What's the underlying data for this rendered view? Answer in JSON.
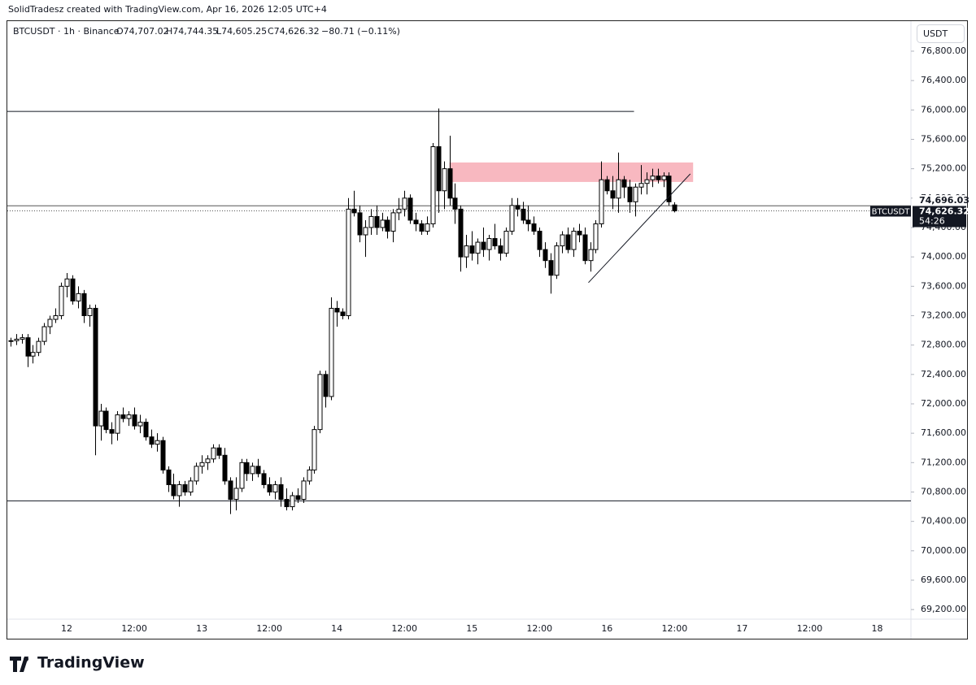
{
  "header": {
    "credit": "SolidTradesz created with TradingView.com, Apr 16, 2026 12:05 UTC+4"
  },
  "footer": {
    "brand": "TradingView"
  },
  "chart_data": {
    "type": "candlestick",
    "legend": {
      "symbol": "BTCUSDT · 1h · Binance",
      "open": "O74,707.02",
      "high": "H74,744.35",
      "low": "L74,605.25",
      "close": "C74,626.32",
      "change": "−80.71 (−0.11%)"
    },
    "currency": "USDT",
    "up_color": "#ffffff",
    "down_color": "#000000",
    "outline": "#000000",
    "categories": [
      null,
      null,
      null,
      null,
      null,
      null,
      null,
      null,
      null,
      null,
      "12",
      null,
      null,
      null,
      null,
      null,
      null,
      null,
      null,
      null,
      null,
      null,
      "12:00",
      null,
      null,
      null,
      null,
      null,
      null,
      null,
      null,
      null,
      null,
      null,
      "13",
      null,
      null,
      null,
      null,
      null,
      null,
      null,
      null,
      null,
      null,
      null,
      "12:00",
      null,
      null,
      null,
      null,
      null,
      null,
      null,
      null,
      null,
      null,
      null,
      "14",
      null,
      null,
      null,
      null,
      null,
      null,
      null,
      null,
      null,
      null,
      null,
      "12:00",
      null,
      null,
      null,
      null,
      null,
      null,
      null,
      null,
      null,
      null,
      null,
      "15",
      null,
      null,
      null,
      null,
      null,
      null,
      null,
      null,
      null,
      null,
      null,
      "12:00",
      null,
      null,
      null,
      null,
      null,
      null,
      null,
      null,
      null,
      null,
      null,
      "16",
      null,
      null,
      null,
      null,
      null,
      null,
      null,
      null,
      null,
      null,
      null,
      "12:00",
      null,
      null,
      null,
      null,
      null,
      null,
      null,
      null,
      null,
      null,
      null,
      "17",
      null,
      null,
      null,
      null,
      null,
      null,
      null,
      null,
      null,
      null,
      null,
      "12:00",
      null,
      null,
      null,
      null,
      null,
      null,
      null,
      null,
      null,
      null,
      null,
      "18"
    ],
    "ohlc": [
      [
        72850,
        72900,
        72780,
        72860
      ],
      [
        72860,
        72950,
        72800,
        72880
      ],
      [
        72880,
        72950,
        72820,
        72900
      ],
      [
        72900,
        72950,
        72500,
        72650
      ],
      [
        72650,
        72800,
        72550,
        72700
      ],
      [
        72700,
        72900,
        72650,
        72850
      ],
      [
        72850,
        73100,
        72800,
        73050
      ],
      [
        73050,
        73200,
        72950,
        73150
      ],
      [
        73150,
        73300,
        73100,
        73200
      ],
      [
        73200,
        73650,
        73150,
        73600
      ],
      [
        73600,
        73780,
        73450,
        73700
      ],
      [
        73700,
        73750,
        73350,
        73400
      ],
      [
        73400,
        73600,
        73300,
        73500
      ],
      [
        73500,
        73550,
        73100,
        73200
      ],
      [
        73200,
        73350,
        73050,
        73300
      ],
      [
        73300,
        73350,
        71300,
        71700
      ],
      [
        71700,
        72000,
        71500,
        71900
      ],
      [
        71900,
        71950,
        71600,
        71650
      ],
      [
        71650,
        71750,
        71450,
        71600
      ],
      [
        71600,
        71900,
        71500,
        71850
      ],
      [
        71850,
        71950,
        71750,
        71800
      ],
      [
        71800,
        71900,
        71700,
        71850
      ],
      [
        71850,
        71950,
        71650,
        71700
      ],
      [
        71700,
        71850,
        71600,
        71750
      ],
      [
        71750,
        71800,
        71500,
        71550
      ],
      [
        71550,
        71650,
        71400,
        71450
      ],
      [
        71450,
        71600,
        71350,
        71500
      ],
      [
        71500,
        71550,
        71050,
        71100
      ],
      [
        71100,
        71150,
        70800,
        70900
      ],
      [
        70900,
        71050,
        70700,
        70750
      ],
      [
        70750,
        70950,
        70600,
        70900
      ],
      [
        70900,
        70950,
        70750,
        70800
      ],
      [
        70800,
        71000,
        70750,
        70950
      ],
      [
        70950,
        71200,
        70900,
        71150
      ],
      [
        71150,
        71300,
        71050,
        71200
      ],
      [
        71200,
        71300,
        71100,
        71250
      ],
      [
        71250,
        71450,
        71200,
        71400
      ],
      [
        71400,
        71450,
        71250,
        71300
      ],
      [
        71300,
        71400,
        70900,
        70950
      ],
      [
        70950,
        71000,
        70500,
        70700
      ],
      [
        70700,
        71000,
        70550,
        70850
      ],
      [
        70850,
        71250,
        70800,
        71200
      ],
      [
        71200,
        71250,
        70950,
        71050
      ],
      [
        71050,
        71200,
        70950,
        71150
      ],
      [
        71150,
        71250,
        71000,
        71050
      ],
      [
        71050,
        71100,
        70850,
        70900
      ],
      [
        70900,
        71000,
        70750,
        70800
      ],
      [
        70800,
        70950,
        70700,
        70900
      ],
      [
        70900,
        71000,
        70600,
        70700
      ],
      [
        70700,
        70850,
        70550,
        70600
      ],
      [
        70600,
        70800,
        70550,
        70750
      ],
      [
        70750,
        70850,
        70650,
        70700
      ],
      [
        70700,
        71000,
        70650,
        70950
      ],
      [
        70950,
        71150,
        70900,
        71100
      ],
      [
        71100,
        71700,
        71050,
        71650
      ],
      [
        71650,
        72450,
        71600,
        72400
      ],
      [
        72400,
        72450,
        71950,
        72100
      ],
      [
        72100,
        73450,
        72050,
        73300
      ],
      [
        73300,
        73400,
        73050,
        73250
      ],
      [
        73250,
        73300,
        73150,
        73200
      ],
      [
        73200,
        74800,
        73150,
        74650
      ],
      [
        74650,
        74900,
        74550,
        74600
      ],
      [
        74600,
        74700,
        74200,
        74300
      ],
      [
        74300,
        74500,
        74000,
        74400
      ],
      [
        74400,
        74650,
        74300,
        74550
      ],
      [
        74550,
        74700,
        74300,
        74400
      ],
      [
        74400,
        74600,
        74350,
        74500
      ],
      [
        74500,
        74550,
        74250,
        74350
      ],
      [
        74350,
        74650,
        74200,
        74600
      ],
      [
        74600,
        74800,
        74500,
        74650
      ],
      [
        74650,
        74900,
        74550,
        74800
      ],
      [
        74800,
        74850,
        74450,
        74500
      ],
      [
        74500,
        74600,
        74350,
        74450
      ],
      [
        74450,
        74500,
        74300,
        74350
      ],
      [
        74350,
        74550,
        74300,
        74450
      ],
      [
        74450,
        75550,
        74400,
        75500
      ],
      [
        75500,
        76020,
        74600,
        74900
      ],
      [
        74900,
        75300,
        74650,
        75200
      ],
      [
        75200,
        75650,
        74700,
        74800
      ],
      [
        74800,
        75000,
        74450,
        74650
      ],
      [
        74650,
        74700,
        73800,
        74000
      ],
      [
        74000,
        74300,
        73850,
        74150
      ],
      [
        74150,
        74350,
        73950,
        74050
      ],
      [
        74050,
        74250,
        73900,
        74200
      ],
      [
        74200,
        74400,
        74000,
        74100
      ],
      [
        74100,
        74300,
        73950,
        74250
      ],
      [
        74250,
        74450,
        74100,
        74150
      ],
      [
        74150,
        74250,
        73950,
        74050
      ],
      [
        74050,
        74400,
        74000,
        74350
      ],
      [
        74350,
        74800,
        74300,
        74700
      ],
      [
        74700,
        74800,
        74550,
        74650
      ],
      [
        74650,
        74750,
        74450,
        74500
      ],
      [
        74500,
        74700,
        74350,
        74450
      ],
      [
        74450,
        74550,
        74300,
        74350
      ],
      [
        74350,
        74400,
        74000,
        74100
      ],
      [
        74100,
        74200,
        73850,
        73950
      ],
      [
        73950,
        74050,
        73500,
        73750
      ],
      [
        73750,
        74200,
        73700,
        74150
      ],
      [
        74150,
        74350,
        74050,
        74300
      ],
      [
        74300,
        74400,
        74050,
        74100
      ],
      [
        74100,
        74400,
        74000,
        74350
      ],
      [
        74350,
        74450,
        74200,
        74300
      ],
      [
        74300,
        74400,
        73900,
        73950
      ],
      [
        73950,
        74200,
        73800,
        74100
      ],
      [
        74100,
        74500,
        74050,
        74450
      ],
      [
        74450,
        75300,
        74400,
        75050
      ],
      [
        75050,
        75100,
        74850,
        74900
      ],
      [
        74900,
        75100,
        74650,
        74800
      ],
      [
        74800,
        75420,
        74600,
        75050
      ],
      [
        75050,
        75100,
        74800,
        74950
      ],
      [
        74950,
        75050,
        74600,
        74750
      ],
      [
        74750,
        75000,
        74550,
        74950
      ],
      [
        74950,
        75250,
        74850,
        75000
      ],
      [
        75000,
        75150,
        74850,
        75050
      ],
      [
        75050,
        75200,
        74950,
        75100
      ],
      [
        75100,
        75200,
        75000,
        75050
      ],
      [
        75050,
        75150,
        74950,
        75100
      ],
      [
        75100,
        75150,
        74700,
        74750
      ],
      [
        74707.02,
        74744.35,
        74605.25,
        74626.32
      ],
      null,
      null,
      null,
      null,
      null,
      null,
      null,
      null,
      null,
      null,
      null,
      null,
      null,
      null,
      null,
      null,
      null,
      null,
      null,
      null,
      null,
      null,
      null,
      null,
      null,
      null,
      null,
      null,
      null,
      null,
      null,
      null,
      null,
      null,
      null,
      null
    ],
    "ylim": [
      69069,
      77220
    ],
    "yticks": [
      {
        "value": 69200,
        "label": "69,200.00"
      },
      {
        "value": 69600,
        "label": "69,600.00"
      },
      {
        "value": 70000,
        "label": "70,000.00"
      },
      {
        "value": 70400,
        "label": "70,400.00"
      },
      {
        "value": 70800,
        "label": "70,800.00"
      },
      {
        "value": 71200,
        "label": "71,200.00"
      },
      {
        "value": 71600,
        "label": "71,600.00"
      },
      {
        "value": 72000,
        "label": "72,000.00"
      },
      {
        "value": 72400,
        "label": "72,400.00"
      },
      {
        "value": 72800,
        "label": "72,800.00"
      },
      {
        "value": 73200,
        "label": "73,200.00"
      },
      {
        "value": 73600,
        "label": "73,600.00"
      },
      {
        "value": 74000,
        "label": "74,000.00"
      },
      {
        "value": 74400,
        "label": "74,400.00"
      },
      {
        "value": 74800,
        "label": "74,800.00"
      },
      {
        "value": 75200,
        "label": "75,200.00"
      },
      {
        "value": 75600,
        "label": "75,600.00"
      },
      {
        "value": 76000,
        "label": "76,000.00"
      },
      {
        "value": 76400,
        "label": "76,400.00"
      },
      {
        "value": 76800,
        "label": "76,800.00"
      }
    ],
    "price_line": {
      "value": 74696.03,
      "label": "74,696.03"
    },
    "last_price": {
      "value": 74626.32,
      "label": "74,626.32",
      "tag": "BTCUSDT",
      "countdown": "54:26"
    },
    "levels": [
      75980,
      70680
    ],
    "zone": [
      75020,
      75285
    ],
    "trendline": [
      73650,
      75130
    ]
  }
}
